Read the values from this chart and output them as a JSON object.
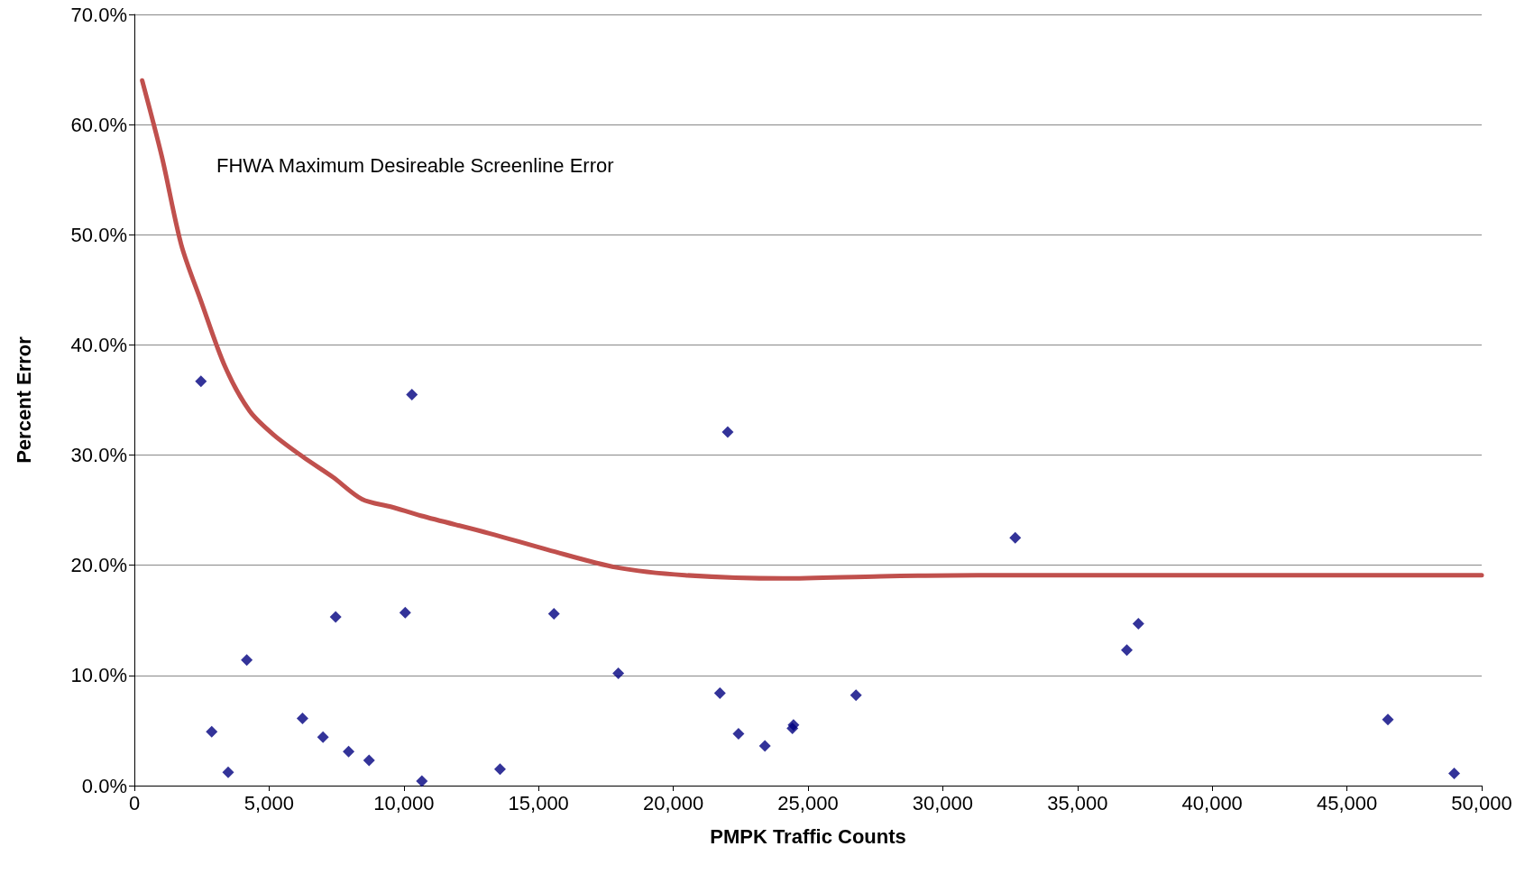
{
  "chart_data": {
    "type": "scatter",
    "xlabel": "PMPK Traffic Counts",
    "ylabel": "Percent Error",
    "annotations": [
      "FHWA Maximum Desireable Screenline Error"
    ],
    "xlim": [
      0,
      50000
    ],
    "xticks": [
      {
        "value": 0,
        "label": "0"
      },
      {
        "value": 5000,
        "label": "5,000"
      },
      {
        "value": 10000,
        "label": "10,000"
      },
      {
        "value": 15000,
        "label": "15,000"
      },
      {
        "value": 20000,
        "label": "20,000"
      },
      {
        "value": 25000,
        "label": "25,000"
      },
      {
        "value": 30000,
        "label": "30,000"
      },
      {
        "value": 35000,
        "label": "35,000"
      },
      {
        "value": 40000,
        "label": "40,000"
      },
      {
        "value": 45000,
        "label": "45,000"
      },
      {
        "value": 50000,
        "label": "50,000"
      }
    ],
    "ylim": [
      0,
      70
    ],
    "yticks": [
      {
        "value": 0,
        "label": "0.0%"
      },
      {
        "value": 10,
        "label": "10.0%"
      },
      {
        "value": 20,
        "label": "20.0%"
      },
      {
        "value": 30,
        "label": "30.0%"
      },
      {
        "value": 40,
        "label": "40.0%"
      },
      {
        "value": 50,
        "label": "50.0%"
      },
      {
        "value": 60,
        "label": "60.0%"
      },
      {
        "value": 70,
        "label": "70.0%"
      }
    ],
    "grid": "y",
    "series": [
      {
        "color": "#000080",
        "marker": "diamond",
        "x": [
          2470,
          2870,
          3480,
          4170,
          6240,
          7000,
          7470,
          7950,
          8710,
          10050,
          10300,
          10670,
          13570,
          15570,
          17960,
          21730,
          22020,
          22420,
          23400,
          24420,
          24460,
          26780,
          32690,
          36830,
          37260,
          46520,
          48980
        ],
        "values": [
          36.7,
          4.9,
          1.2,
          11.4,
          6.1,
          4.4,
          15.3,
          3.1,
          2.3,
          15.7,
          35.5,
          0.4,
          1.5,
          15.6,
          10.2,
          8.4,
          32.1,
          4.7,
          3.6,
          5.2,
          5.5,
          8.2,
          22.5,
          12.3,
          14.7,
          6.0,
          1.1
        ]
      },
      {
        "type": "line",
        "color": "#c0504d",
        "marker": "none",
        "line_style": "solid",
        "x": [
          290,
          1020,
          1740,
          2470,
          3370,
          4280,
          5190,
          6280,
          7370,
          8450,
          9540,
          10630,
          13170,
          15350,
          17890,
          20430,
          24060,
          27690,
          31300,
          50000
        ],
        "values": [
          64.0,
          57.1,
          49.1,
          44.0,
          38.0,
          34.0,
          31.8,
          29.8,
          28.0,
          26.0,
          25.3,
          24.5,
          22.9,
          21.4,
          19.8,
          19.1,
          18.8,
          19.0,
          19.1,
          19.1
        ]
      }
    ]
  }
}
